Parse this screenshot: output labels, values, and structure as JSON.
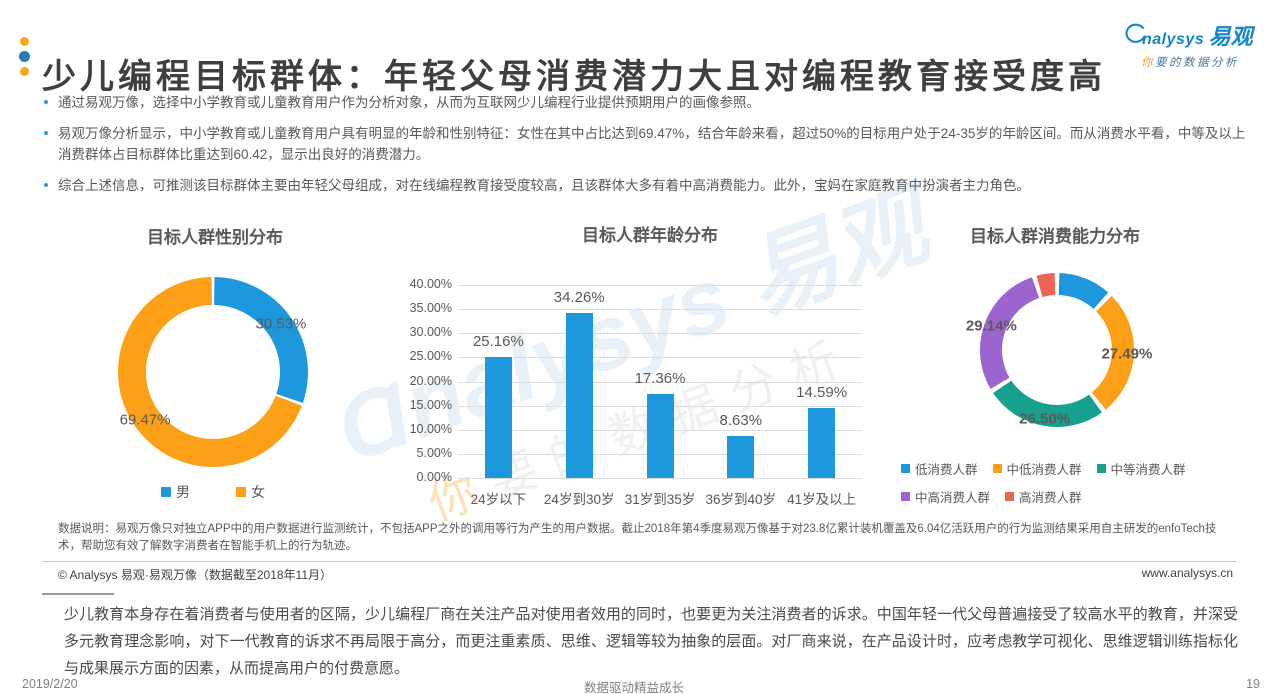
{
  "header": {
    "title": "少儿编程目标群体：年轻父母消费潜力大且对编程教育接受度高",
    "logo": {
      "brand_en": "nalysys",
      "brand_cn": "易观",
      "tagline_first": "你",
      "tagline_rest": "要的数据分析"
    }
  },
  "bullets": [
    "通过易观万像，选择中小学教育或儿童教育用户作为分析对象，从而为互联网少儿编程行业提供预期用户的画像参照。",
    "易观万像分析显示，中小学教育或儿童教育用户具有明显的年龄和性别特征：女性在其中占比达到69.47%，结合年龄来看，超过50%的目标用户处于24-35岁的年龄区间。而从消费水平看，中等及以上消费群体占目标群体比重达到60.42，显示出良好的消费潜力。",
    "综合上述信息，可推测该目标群体主要由年轻父母组成，对在线编程教育接受度较高，且该群体大多有着中高消费能力。此外，宝妈在家庭教育中扮演者主力角色。"
  ],
  "watermark": {
    "line1": "Ɑnalysys 易观",
    "line2_first": "你",
    "line2_rest": "要的数据分析"
  },
  "chart_data": [
    {
      "type": "pie",
      "subtype": "donut",
      "title": "目标人群性别分布",
      "unit": "%",
      "legend_position": "bottom",
      "series": [
        {
          "name": "男",
          "value": 30.53,
          "display": "30.53%",
          "color": "#1E98DC"
        },
        {
          "name": "女",
          "value": 69.47,
          "display": "69.47%",
          "color": "#FCA017"
        }
      ]
    },
    {
      "type": "bar",
      "title": "目标人群年龄分布",
      "categories": [
        "24岁以下",
        "24岁到30岁",
        "31岁到35岁",
        "36岁到40岁",
        "41岁及以上"
      ],
      "values": [
        25.16,
        34.26,
        17.36,
        8.63,
        14.59
      ],
      "unit": "%",
      "ylim": [
        0,
        40
      ],
      "ytick_step": 5,
      "grid": true,
      "bar_color": "#1E98DC"
    },
    {
      "type": "pie",
      "subtype": "donut",
      "title": "目标人群消费能力分布",
      "unit": "%",
      "legend_position": "bottom",
      "series": [
        {
          "name": "低消费人群",
          "value": 12.09,
          "display": null,
          "color": "#1E98DC"
        },
        {
          "name": "中低消费人群",
          "value": 27.49,
          "display": "27.49%",
          "color": "#FCA017"
        },
        {
          "name": "中等消费人群",
          "value": 26.5,
          "display": "26.50%",
          "color": "#16A08E"
        },
        {
          "name": "中高消费人群",
          "value": 29.14,
          "display": "29.14%",
          "color": "#9C64CE"
        },
        {
          "name": "高消费人群",
          "value": 4.78,
          "display": null,
          "color": "#EE6352"
        }
      ]
    }
  ],
  "note": {
    "text": "数据说明：易观万像只对独立APP中的用户数据进行监测统计，不包括APP之外的调用等行为产生的用户数据。截止2018年第4季度易观万像基于对23.8亿累计装机覆盖及6.04亿活跃用户的行为监测结果采用自主研发的enfoTech技术，帮助您有效了解数字消费者在智能手机上的行为轨迹。"
  },
  "copyright": {
    "left": "© Analysys 易观·易观万像（数据截至2018年11月）",
    "right": "www.analysys.cn"
  },
  "summary": "少儿教育本身存在着消费者与使用者的区隔，少儿编程厂商在关注产品对使用者效用的同时，也要更为关注消费者的诉求。中国年轻一代父母普遍接受了较高水平的教育，并深受多元教育理念影响，对下一代教育的诉求不再局限于高分，而更注重素质、思维、逻辑等较为抽象的层面。对厂商来说，在产品设计时，应考虑教学可视化、思维逻辑训练指标化与成果展示方面的因素，从而提高用户的付费意愿。",
  "footer": {
    "date": "2019/2/20",
    "center": "数据驱动精益成长",
    "page": "19"
  },
  "colors": {
    "blue": "#1E98DC",
    "orange": "#FCA017",
    "teal": "#16A08E",
    "purple": "#9C64CE",
    "coral": "#EE6352",
    "title_text": "#3f3f3f",
    "body_text": "#595959",
    "logo_blue": "#1286C8",
    "logo_orange": "#F59A23"
  }
}
